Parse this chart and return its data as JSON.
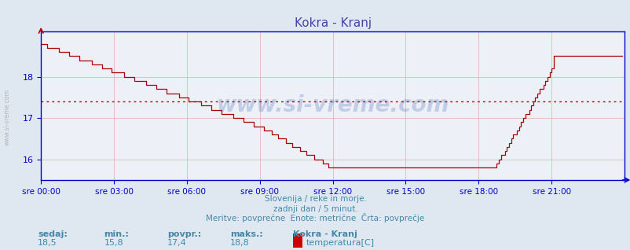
{
  "title": "Kokra - Kranj",
  "title_color": "#4444aa",
  "line_color": "#aa0000",
  "avg_line_color": "#bb0000",
  "avg_value": 17.4,
  "y_min": 15.5,
  "y_max": 19.1,
  "y_ticks": [
    16,
    17,
    18
  ],
  "x_tick_labels": [
    "sre 00:00",
    "sre 03:00",
    "sre 06:00",
    "sre 09:00",
    "sre 12:00",
    "sre 15:00",
    "sre 18:00",
    "sre 21:00"
  ],
  "bg_color": "#dfe8f0",
  "plot_bg_color": "#eef0f8",
  "grid_color": "#ddaaaa",
  "axis_color": "#0000cc",
  "text_color": "#4488aa",
  "footer_line1": "Slovenija / reke in morje.",
  "footer_line2": "zadnji dan / 5 minut.",
  "footer_line3": "Meritve: povprečne  Enote: metrične  Črta: povprečje",
  "label_sedaj": "sedaj:",
  "label_min": "min.:",
  "label_povpr": "povpr.:",
  "label_maks": "maks.:",
  "val_sedaj": "18,5",
  "val_min": "15,8",
  "val_povpr": "17,4",
  "val_maks": "18,8",
  "legend_title": "Kokra - Kranj",
  "legend_label": "temperatura[C]",
  "legend_color": "#cc0000",
  "watermark": "www.si-vreme.com",
  "watermark_color": "#2255aa",
  "watermark_alpha": 0.22,
  "n_points": 288
}
